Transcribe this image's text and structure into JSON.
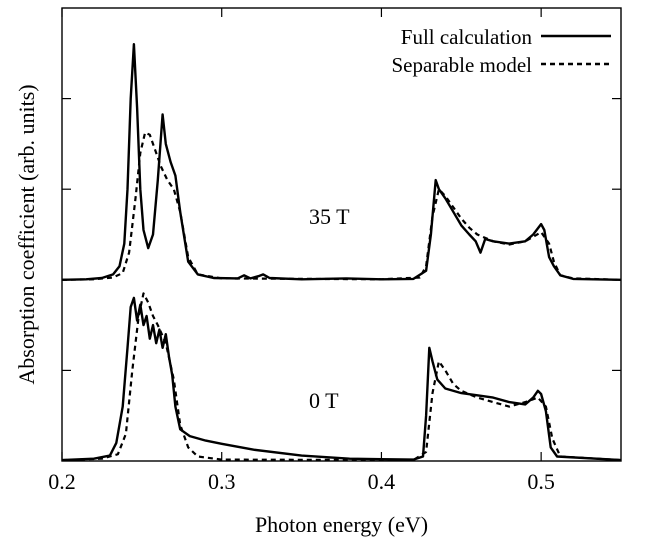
{
  "chart_data": {
    "type": "line",
    "title": "",
    "xlabel": "Photon energy (eV)",
    "ylabel": "Absorption coefficient (arb. units)",
    "xlim": [
      0.2,
      0.55
    ],
    "ylim": [
      0,
      1
    ],
    "x_ticks": [
      0.2,
      0.3,
      0.4,
      0.5
    ],
    "x_tick_labels": [
      "0.2",
      "0.3",
      "0.4",
      "0.5"
    ],
    "y_ticks": [
      0.2,
      0.4,
      0.6,
      0.8
    ],
    "y_tick_labels": [
      "",
      "",
      "",
      ""
    ],
    "grid": false,
    "legend_position": "top-right",
    "legend": [
      {
        "name": "Full calculation",
        "style": "solid"
      },
      {
        "name": "Separable model",
        "style": "dashed"
      }
    ],
    "annotations": [
      "35 T",
      "0 T"
    ],
    "series": [
      {
        "name": "Full calculation",
        "panel": "35 T",
        "style": "solid",
        "points": [
          [
            0.2,
            0.4
          ],
          [
            0.215,
            0.401
          ],
          [
            0.225,
            0.404
          ],
          [
            0.232,
            0.412
          ],
          [
            0.236,
            0.43
          ],
          [
            0.239,
            0.48
          ],
          [
            0.241,
            0.6
          ],
          [
            0.243,
            0.8
          ],
          [
            0.245,
            0.92
          ],
          [
            0.247,
            0.78
          ],
          [
            0.249,
            0.6
          ],
          [
            0.251,
            0.51
          ],
          [
            0.254,
            0.47
          ],
          [
            0.257,
            0.5
          ],
          [
            0.26,
            0.62
          ],
          [
            0.263,
            0.765
          ],
          [
            0.265,
            0.7
          ],
          [
            0.268,
            0.66
          ],
          [
            0.271,
            0.63
          ],
          [
            0.274,
            0.55
          ],
          [
            0.279,
            0.44
          ],
          [
            0.285,
            0.412
          ],
          [
            0.295,
            0.404
          ],
          [
            0.31,
            0.403
          ],
          [
            0.314,
            0.41
          ],
          [
            0.318,
            0.403
          ],
          [
            0.323,
            0.408
          ],
          [
            0.326,
            0.412
          ],
          [
            0.33,
            0.404
          ],
          [
            0.35,
            0.401
          ],
          [
            0.378,
            0.403
          ],
          [
            0.4,
            0.401
          ],
          [
            0.42,
            0.402
          ],
          [
            0.428,
            0.42
          ],
          [
            0.431,
            0.5
          ],
          [
            0.434,
            0.62
          ],
          [
            0.436,
            0.6
          ],
          [
            0.44,
            0.58
          ],
          [
            0.445,
            0.55
          ],
          [
            0.45,
            0.52
          ],
          [
            0.455,
            0.5
          ],
          [
            0.459,
            0.485
          ],
          [
            0.462,
            0.46
          ],
          [
            0.465,
            0.49
          ],
          [
            0.47,
            0.485
          ],
          [
            0.48,
            0.48
          ],
          [
            0.49,
            0.485
          ],
          [
            0.495,
            0.5
          ],
          [
            0.5,
            0.523
          ],
          [
            0.502,
            0.51
          ],
          [
            0.505,
            0.45
          ],
          [
            0.508,
            0.43
          ],
          [
            0.512,
            0.41
          ],
          [
            0.52,
            0.402
          ],
          [
            0.55,
            0.4
          ]
        ]
      },
      {
        "name": "Separable model",
        "panel": "35 T",
        "style": "dashed",
        "points": [
          [
            0.2,
            0.4
          ],
          [
            0.22,
            0.401
          ],
          [
            0.232,
            0.405
          ],
          [
            0.238,
            0.415
          ],
          [
            0.242,
            0.46
          ],
          [
            0.246,
            0.58
          ],
          [
            0.249,
            0.68
          ],
          [
            0.252,
            0.725
          ],
          [
            0.255,
            0.72
          ],
          [
            0.258,
            0.69
          ],
          [
            0.262,
            0.65
          ],
          [
            0.266,
            0.62
          ],
          [
            0.27,
            0.6
          ],
          [
            0.274,
            0.55
          ],
          [
            0.279,
            0.45
          ],
          [
            0.285,
            0.412
          ],
          [
            0.3,
            0.403
          ],
          [
            0.4,
            0.401
          ],
          [
            0.424,
            0.405
          ],
          [
            0.428,
            0.43
          ],
          [
            0.432,
            0.54
          ],
          [
            0.436,
            0.6
          ],
          [
            0.44,
            0.585
          ],
          [
            0.445,
            0.56
          ],
          [
            0.45,
            0.535
          ],
          [
            0.455,
            0.515
          ],
          [
            0.46,
            0.5
          ],
          [
            0.47,
            0.485
          ],
          [
            0.48,
            0.478
          ],
          [
            0.49,
            0.485
          ],
          [
            0.495,
            0.495
          ],
          [
            0.5,
            0.505
          ],
          [
            0.505,
            0.48
          ],
          [
            0.508,
            0.44
          ],
          [
            0.512,
            0.41
          ],
          [
            0.52,
            0.403
          ],
          [
            0.55,
            0.4
          ]
        ]
      },
      {
        "name": "Full calculation",
        "panel": "0 T",
        "style": "solid",
        "points": [
          [
            0.2,
            0.002
          ],
          [
            0.22,
            0.005
          ],
          [
            0.23,
            0.012
          ],
          [
            0.234,
            0.04
          ],
          [
            0.238,
            0.12
          ],
          [
            0.241,
            0.25
          ],
          [
            0.243,
            0.34
          ],
          [
            0.245,
            0.36
          ],
          [
            0.247,
            0.31
          ],
          [
            0.249,
            0.345
          ],
          [
            0.251,
            0.3
          ],
          [
            0.253,
            0.32
          ],
          [
            0.255,
            0.27
          ],
          [
            0.257,
            0.3
          ],
          [
            0.259,
            0.26
          ],
          [
            0.261,
            0.29
          ],
          [
            0.263,
            0.25
          ],
          [
            0.265,
            0.28
          ],
          [
            0.267,
            0.23
          ],
          [
            0.269,
            0.19
          ],
          [
            0.271,
            0.12
          ],
          [
            0.274,
            0.07
          ],
          [
            0.28,
            0.055
          ],
          [
            0.29,
            0.045
          ],
          [
            0.3,
            0.038
          ],
          [
            0.32,
            0.025
          ],
          [
            0.35,
            0.012
          ],
          [
            0.38,
            0.005
          ],
          [
            0.42,
            0.003
          ],
          [
            0.426,
            0.01
          ],
          [
            0.428,
            0.1
          ],
          [
            0.43,
            0.25
          ],
          [
            0.432,
            0.22
          ],
          [
            0.435,
            0.18
          ],
          [
            0.44,
            0.16
          ],
          [
            0.45,
            0.15
          ],
          [
            0.46,
            0.145
          ],
          [
            0.47,
            0.14
          ],
          [
            0.48,
            0.13
          ],
          [
            0.49,
            0.125
          ],
          [
            0.495,
            0.14
          ],
          [
            0.498,
            0.155
          ],
          [
            0.5,
            0.148
          ],
          [
            0.503,
            0.11
          ],
          [
            0.506,
            0.03
          ],
          [
            0.51,
            0.01
          ],
          [
            0.55,
            0.002
          ]
        ]
      },
      {
        "name": "Separable model",
        "panel": "0 T",
        "style": "dashed",
        "points": [
          [
            0.2,
            0.002
          ],
          [
            0.225,
            0.005
          ],
          [
            0.235,
            0.015
          ],
          [
            0.24,
            0.06
          ],
          [
            0.244,
            0.2
          ],
          [
            0.248,
            0.32
          ],
          [
            0.251,
            0.37
          ],
          [
            0.254,
            0.35
          ],
          [
            0.257,
            0.32
          ],
          [
            0.26,
            0.3
          ],
          [
            0.265,
            0.26
          ],
          [
            0.27,
            0.18
          ],
          [
            0.274,
            0.08
          ],
          [
            0.279,
            0.03
          ],
          [
            0.285,
            0.01
          ],
          [
            0.3,
            0.003
          ],
          [
            0.42,
            0.002
          ],
          [
            0.428,
            0.02
          ],
          [
            0.432,
            0.15
          ],
          [
            0.436,
            0.22
          ],
          [
            0.44,
            0.2
          ],
          [
            0.445,
            0.17
          ],
          [
            0.45,
            0.155
          ],
          [
            0.46,
            0.14
          ],
          [
            0.47,
            0.13
          ],
          [
            0.48,
            0.12
          ],
          [
            0.49,
            0.13
          ],
          [
            0.498,
            0.14
          ],
          [
            0.503,
            0.12
          ],
          [
            0.507,
            0.05
          ],
          [
            0.512,
            0.01
          ],
          [
            0.55,
            0.002
          ]
        ]
      }
    ]
  }
}
